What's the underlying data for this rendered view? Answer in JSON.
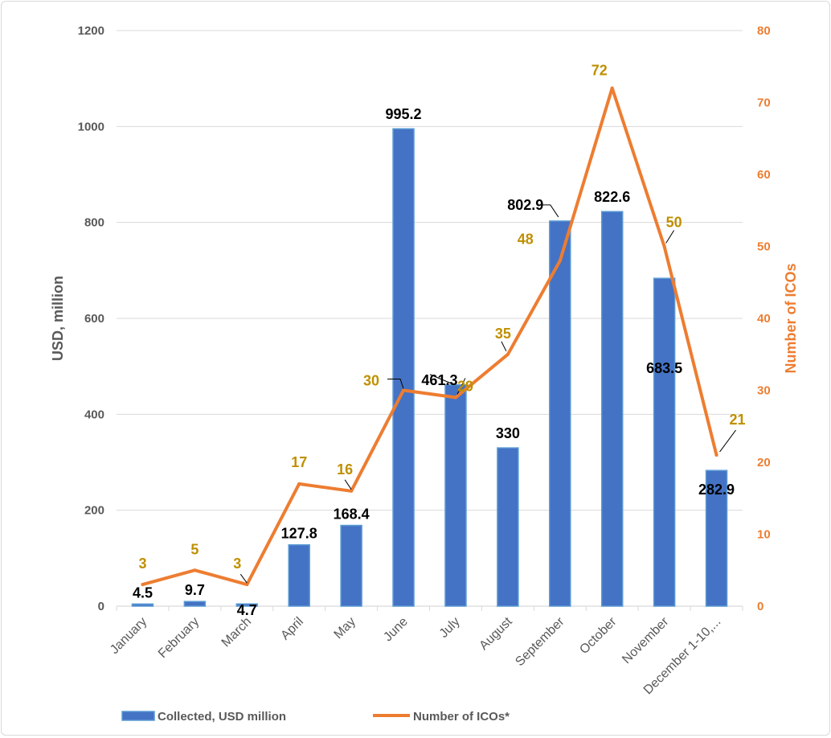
{
  "chart_data": {
    "type": "bar",
    "categories": [
      "January",
      "February",
      "March",
      "April",
      "May",
      "June",
      "July",
      "August",
      "September",
      "October",
      "November",
      "December 1-10,..."
    ],
    "series": [
      {
        "name": "Collected, USD million",
        "type": "bar",
        "axis": "left",
        "values": [
          4.5,
          9.7,
          4.7,
          127.8,
          168.4,
          995.2,
          461.3,
          330,
          802.9,
          822.6,
          683.5,
          282.9
        ],
        "labels": [
          "4.5",
          "9.7",
          "4.7",
          "127.8",
          "168.4",
          "995.2",
          "461.3",
          "330",
          "802.9",
          "822.6",
          "683.5",
          "282.9"
        ],
        "color": "#4472c4"
      },
      {
        "name": "Number of ICOs*",
        "type": "line",
        "axis": "right",
        "values": [
          3,
          5,
          3,
          17,
          16,
          30,
          29,
          35,
          48,
          72,
          50,
          21
        ],
        "labels": [
          "3",
          "5",
          "3",
          "17",
          "16",
          "30",
          "29",
          "35",
          "48",
          "72",
          "50",
          "21"
        ],
        "color": "#ed7d31",
        "label_color": "#bf9000"
      }
    ],
    "ylabel": "USD, million",
    "y2label": "Number of ICOs",
    "ylim": [
      0,
      1200
    ],
    "y2lim": [
      0,
      80
    ],
    "yticks": [
      "0",
      "200",
      "400",
      "600",
      "800",
      "1000",
      "1200"
    ],
    "y2ticks": [
      "0",
      "10",
      "20",
      "30",
      "40",
      "50",
      "60",
      "70",
      "80"
    ],
    "grid": true,
    "legend": "bottom"
  }
}
